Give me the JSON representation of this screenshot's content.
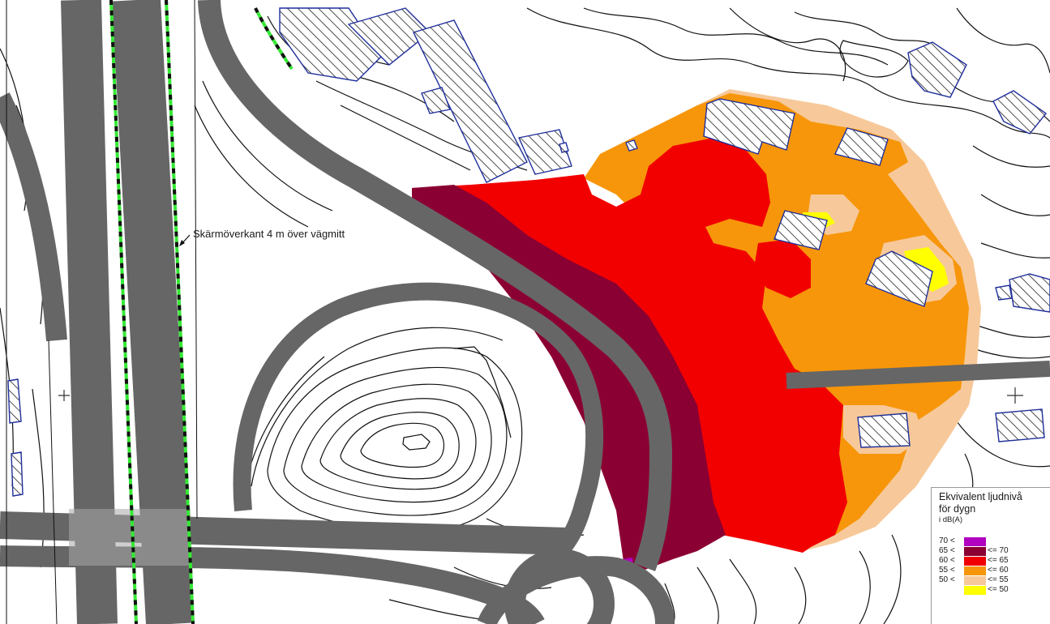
{
  "annotation": {
    "screen_label": "Skärmöverkant 4 m över vägmitt"
  },
  "legend": {
    "title_line1": "Ekvivalent ljudnivå",
    "title_line2": "för dygn",
    "unit": "i dB(A)",
    "rows": [
      {
        "low": "70 <",
        "high": "",
        "color": "#b000c0"
      },
      {
        "low": "65 <",
        "high": "<= 70",
        "color": "#8b0033"
      },
      {
        "low": "60 <",
        "high": "<= 65",
        "color": "#f20000"
      },
      {
        "low": "55 <",
        "high": "<= 60",
        "color": "#f7960a"
      },
      {
        "low": "50 <",
        "high": "<= 55",
        "color": "#f7c99a"
      },
      {
        "low": "",
        "high": "<= 50",
        "color": "#ffff00"
      }
    ]
  },
  "colors": {
    "road": "#666666",
    "road_light": "#a8a8a8",
    "building_outline": "#1f2f9a",
    "screen_dash_a": "#36e836",
    "screen_dash_b": "#111111",
    "contour": "#111111"
  }
}
